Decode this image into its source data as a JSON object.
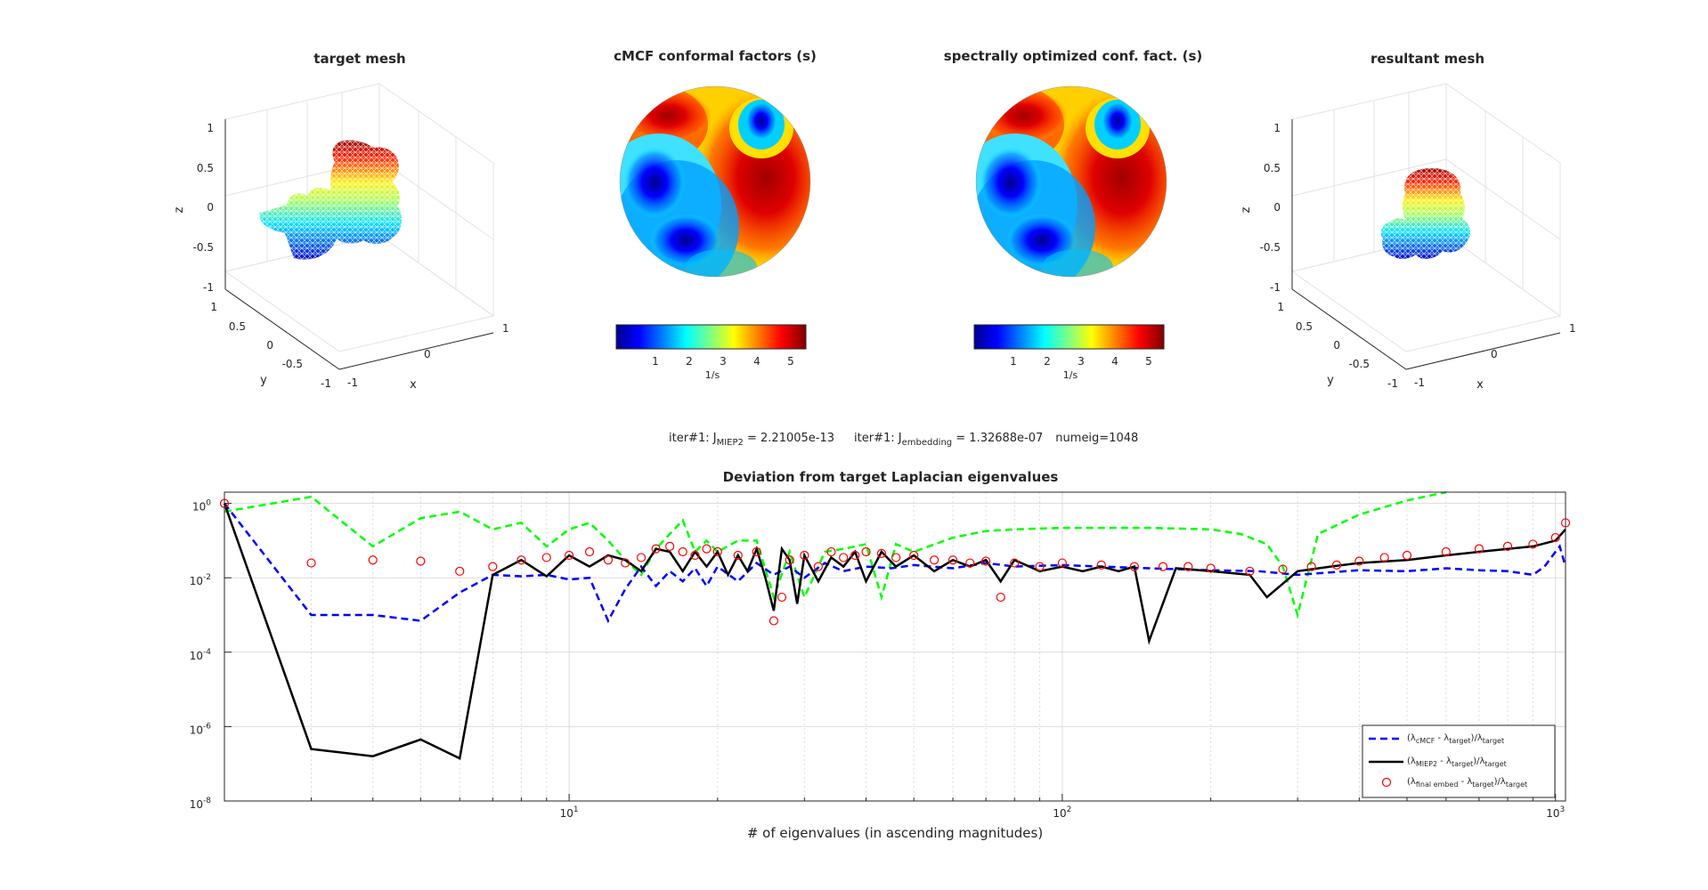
{
  "panels": {
    "target_mesh": {
      "title": "target mesh",
      "z_ticks": [
        "1",
        "0.5",
        "0",
        "-0.5",
        "-1"
      ],
      "y_ticks": [
        "1",
        "0.5",
        "0",
        "-0.5",
        "-1"
      ],
      "x_ticks": [
        "1",
        "0",
        "-1"
      ],
      "xlabel": "x",
      "ylabel": "y",
      "zlabel": "z"
    },
    "cmcf": {
      "title": "cMCF conformal factors (s)",
      "colorbar_ticks": [
        "1",
        "2",
        "3",
        "4",
        "5"
      ],
      "colorbar_label": "1/s"
    },
    "optimized": {
      "title": "spectrally optimized conf. fact. (s)",
      "colorbar_ticks": [
        "1",
        "2",
        "3",
        "4",
        "5"
      ],
      "colorbar_label": "1/s"
    },
    "resultant_mesh": {
      "title": "resultant mesh",
      "z_ticks": [
        "1",
        "0.5",
        "0",
        "-0.5",
        "-1"
      ],
      "y_ticks": [
        "1",
        "0.5",
        "0",
        "-0.5",
        "-1"
      ],
      "x_ticks": [
        "1",
        "0",
        "-1"
      ],
      "xlabel": "x",
      "ylabel": "y",
      "zlabel": "z"
    }
  },
  "info": {
    "iter1_prefix": "iter#1: J",
    "miep2_sub": "MIEP2",
    "miep2_value": " = 2.21005e-13",
    "iter2_prefix": "iter#1: J",
    "embedding_sub": "embedding",
    "embedding_value": " = 1.32688e-07",
    "numeig": "numeig=1048"
  },
  "colors": {
    "cmcf": "#0000ff",
    "miep2": "#000000",
    "embed": "#ff0000",
    "green": "#00ff00",
    "grid": "#dcdcdc",
    "axis": "#262626"
  },
  "chart_data": {
    "type": "line",
    "title": "Deviation from target Laplacian eigenvalues",
    "xlabel": "# of eigenvalues (in ascending magnitudes)",
    "xscale": "log",
    "yscale": "log",
    "xlim": [
      2,
      1048
    ],
    "ylim": [
      1e-08,
      2
    ],
    "x_tick_labels": [
      {
        "base": "10",
        "exp": "1",
        "value": 10
      },
      {
        "base": "10",
        "exp": "2",
        "value": 100
      },
      {
        "base": "10",
        "exp": "3",
        "value": 1000
      }
    ],
    "y_tick_labels": [
      {
        "base": "10",
        "exp": "0",
        "value": 1
      },
      {
        "base": "10",
        "exp": "-2",
        "value": 0.01
      },
      {
        "base": "10",
        "exp": "-4",
        "value": 0.0001
      },
      {
        "base": "10",
        "exp": "-6",
        "value": 1e-06
      },
      {
        "base": "10",
        "exp": "-8",
        "value": 1e-08
      }
    ],
    "series": [
      {
        "name": "cMCF",
        "legend": {
          "pre": "(λ",
          "s1": "cMCF",
          "mid": " - λ",
          "s2": "target",
          "post": ")/λ",
          "s3": "target"
        },
        "style": "dashed",
        "color": "#0000ff",
        "x": [
          2,
          3,
          4,
          5,
          6,
          7,
          8,
          9,
          10,
          11,
          12,
          13,
          14,
          15,
          16,
          17,
          18,
          19,
          20,
          22,
          24,
          26,
          28,
          30,
          33,
          36,
          40,
          45,
          50,
          60,
          70,
          80,
          100,
          120,
          150,
          200,
          250,
          300,
          400,
          500,
          600,
          700,
          800,
          900,
          950,
          1000,
          1020,
          1048
        ],
        "y": [
          1.0,
          0.001,
          0.001,
          0.0007,
          0.004,
          0.012,
          0.011,
          0.012,
          0.009,
          0.01,
          0.0007,
          0.005,
          0.02,
          0.006,
          0.015,
          0.008,
          0.018,
          0.006,
          0.02,
          0.008,
          0.025,
          0.012,
          0.02,
          0.01,
          0.025,
          0.015,
          0.02,
          0.018,
          0.022,
          0.018,
          0.025,
          0.02,
          0.022,
          0.02,
          0.018,
          0.016,
          0.015,
          0.012,
          0.016,
          0.015,
          0.018,
          0.016,
          0.015,
          0.012,
          0.02,
          0.05,
          0.07,
          0.02
        ]
      },
      {
        "name": "MIEP2",
        "legend": {
          "pre": "(λ",
          "s1": "MIEP2",
          "mid": " - λ",
          "s2": "target",
          "post": ")/λ",
          "s3": "target"
        },
        "style": "solid",
        "color": "#000000",
        "x": [
          2,
          3,
          4,
          5,
          6,
          7,
          8,
          9,
          10,
          11,
          12,
          13,
          14,
          15,
          16,
          17,
          18,
          19,
          20,
          21,
          22,
          23,
          24,
          25,
          26,
          27,
          28,
          29,
          30,
          32,
          34,
          36,
          38,
          40,
          43,
          46,
          50,
          55,
          60,
          65,
          70,
          75,
          80,
          90,
          100,
          110,
          120,
          130,
          140,
          150,
          170,
          200,
          240,
          260,
          300,
          350,
          400,
          500,
          600,
          700,
          800,
          900,
          1000,
          1048
        ],
        "y": [
          1.0,
          2.5e-07,
          1.6e-07,
          4.5e-07,
          1.4e-07,
          0.012,
          0.03,
          0.011,
          0.04,
          0.02,
          0.04,
          0.03,
          0.015,
          0.06,
          0.05,
          0.015,
          0.05,
          0.02,
          0.05,
          0.012,
          0.04,
          0.015,
          0.06,
          0.01,
          0.0013,
          0.06,
          0.03,
          0.002,
          0.04,
          0.008,
          0.035,
          0.02,
          0.05,
          0.008,
          0.05,
          0.02,
          0.04,
          0.015,
          0.03,
          0.02,
          0.03,
          0.008,
          0.03,
          0.015,
          0.02,
          0.015,
          0.02,
          0.015,
          0.02,
          0.0002,
          0.018,
          0.015,
          0.012,
          0.003,
          0.015,
          0.02,
          0.025,
          0.03,
          0.04,
          0.05,
          0.06,
          0.07,
          0.1,
          0.2
        ]
      },
      {
        "name": "final embed",
        "legend": {
          "pre": "(λ",
          "s1": "final embed",
          "mid": " - λ",
          "s2": "target",
          "post": ")/λ",
          "s3": "target"
        },
        "style": "markers",
        "color": "#ff0000",
        "x": [
          2,
          3,
          4,
          5,
          6,
          7,
          8,
          9,
          10,
          11,
          12,
          13,
          14,
          15,
          16,
          17,
          18,
          19,
          20,
          22,
          24,
          26,
          27,
          28,
          30,
          32,
          34,
          36,
          38,
          40,
          43,
          46,
          50,
          55,
          60,
          65,
          70,
          75,
          80,
          90,
          100,
          120,
          140,
          160,
          180,
          200,
          240,
          280,
          320,
          360,
          400,
          450,
          500,
          600,
          700,
          800,
          900,
          1000,
          1048
        ],
        "y": [
          1.0,
          0.025,
          0.03,
          0.028,
          0.015,
          0.02,
          0.03,
          0.035,
          0.04,
          0.05,
          0.03,
          0.025,
          0.035,
          0.06,
          0.07,
          0.05,
          0.04,
          0.06,
          0.05,
          0.04,
          0.05,
          0.0007,
          0.003,
          0.03,
          0.04,
          0.02,
          0.05,
          0.035,
          0.04,
          0.05,
          0.045,
          0.035,
          0.04,
          0.03,
          0.03,
          0.025,
          0.028,
          0.003,
          0.025,
          0.02,
          0.025,
          0.022,
          0.02,
          0.02,
          0.02,
          0.018,
          0.015,
          0.017,
          0.02,
          0.022,
          0.028,
          0.035,
          0.04,
          0.05,
          0.06,
          0.07,
          0.08,
          0.12,
          0.3
        ]
      },
      {
        "name": "green",
        "style": "dashed",
        "color": "#00ff00",
        "x": [
          2,
          3,
          4,
          5,
          6,
          7,
          8,
          9,
          10,
          11,
          12,
          13,
          14,
          15,
          16,
          17,
          18,
          19,
          20,
          22,
          24,
          26,
          28,
          30,
          33,
          36,
          40,
          43,
          46,
          50,
          60,
          70,
          80,
          100,
          120,
          150,
          200,
          230,
          260,
          280,
          300,
          330,
          400,
          500,
          600
        ],
        "y": [
          0.6,
          1.5,
          0.07,
          0.4,
          0.6,
          0.2,
          0.3,
          0.07,
          0.2,
          0.3,
          0.1,
          0.03,
          0.012,
          0.06,
          0.15,
          0.35,
          0.05,
          0.1,
          0.05,
          0.1,
          0.1,
          0.003,
          0.05,
          0.003,
          0.05,
          0.06,
          0.08,
          0.003,
          0.08,
          0.05,
          0.12,
          0.18,
          0.2,
          0.22,
          0.22,
          0.22,
          0.2,
          0.15,
          0.08,
          0.02,
          0.001,
          0.15,
          0.5,
          1.2,
          2.0
        ]
      }
    ]
  }
}
